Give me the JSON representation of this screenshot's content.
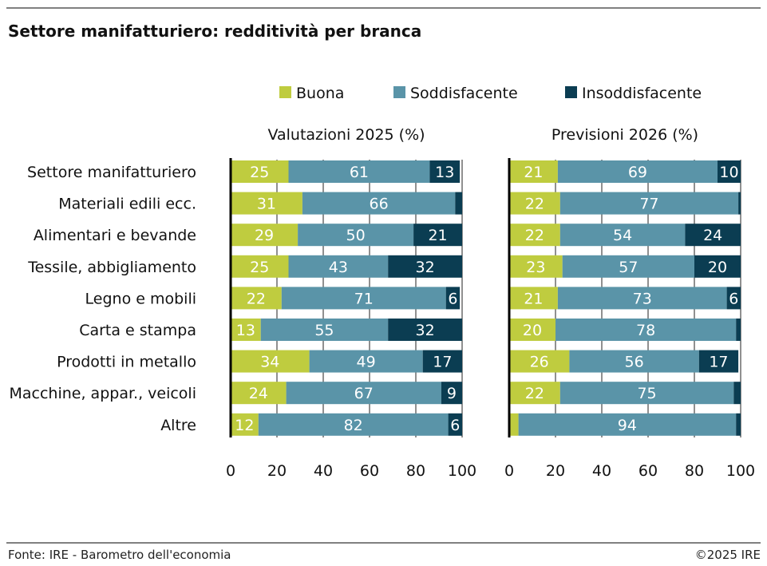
{
  "chart_data": [
    {
      "type": "bar",
      "orientation": "horizontal",
      "stacked": true,
      "title": "Valutazioni 2025 (%)",
      "categories": [
        "Settore manifatturiero",
        "Materiali edili ecc.",
        "Alimentari e bevande",
        "Tessile, abbigliamento",
        "Legno e mobili",
        "Carta e stampa",
        "Prodotti in metallo",
        "Macchine, appar., veicoli",
        "Altre"
      ],
      "series": [
        {
          "name": "Buona",
          "values": [
            25,
            31,
            29,
            25,
            22,
            13,
            34,
            24,
            12
          ]
        },
        {
          "name": "Soddisfacente",
          "values": [
            61,
            66,
            50,
            43,
            71,
            55,
            49,
            67,
            82
          ]
        },
        {
          "name": "Insoddisfacente",
          "values": [
            13,
            3,
            21,
            32,
            6,
            32,
            17,
            9,
            6
          ]
        }
      ],
      "xlim": [
        0,
        100
      ],
      "xticks": [
        0,
        20,
        40,
        60,
        80,
        100
      ]
    },
    {
      "type": "bar",
      "orientation": "horizontal",
      "stacked": true,
      "title": "Previsioni 2026 (%)",
      "categories": [
        "Settore manifatturiero",
        "Materiali edili ecc.",
        "Alimentari e bevande",
        "Tessile, abbigliamento",
        "Legno e mobili",
        "Carta e stampa",
        "Prodotti in metallo",
        "Macchine, appar., veicoli",
        "Altre"
      ],
      "series": [
        {
          "name": "Buona",
          "values": [
            21,
            22,
            22,
            23,
            21,
            20,
            26,
            22,
            4
          ]
        },
        {
          "name": "Soddisfacente",
          "values": [
            69,
            77,
            54,
            57,
            73,
            78,
            56,
            75,
            94
          ]
        },
        {
          "name": "Insoddisfacente",
          "values": [
            10,
            1,
            24,
            20,
            6,
            2,
            17,
            3,
            2
          ]
        }
      ],
      "xlim": [
        0,
        100
      ],
      "xticks": [
        0,
        20,
        40,
        60,
        80,
        100
      ]
    }
  ],
  "title": "Settore manifatturiero: redditività per branca",
  "legend": {
    "placement": "top",
    "items": [
      "Buona",
      "Soddisfacente",
      "Insoddisfacente"
    ]
  },
  "colors": {
    "Buona": "#BFCC3F",
    "Soddisfacente": "#5A94A8",
    "Insoddisfacente": "#0B3D52"
  },
  "footer": {
    "source": "Fonte: IRE - Barometro dell'economia",
    "copyright": "©2025 IRE"
  }
}
